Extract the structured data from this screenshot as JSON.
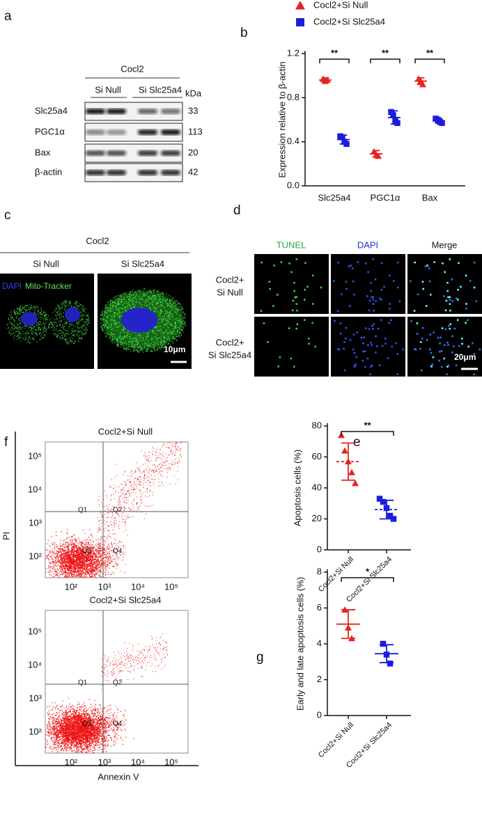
{
  "panel_a": {
    "letter": "a",
    "treatment": "Cocl2",
    "groups": [
      "Si Null",
      "Si Slc25a4"
    ],
    "unit": "kDa",
    "proteins": [
      "Slc25a4",
      "PGC1α",
      "Bax",
      "β-actin"
    ],
    "weights": [
      33,
      113,
      20,
      42
    ]
  },
  "panel_c": {
    "letter": "c",
    "treatment": "Cocl2",
    "groups": [
      "Si Null",
      "Si Slc25a4"
    ],
    "stains": [
      "DAPI",
      "Mito-Tracker"
    ],
    "scale_bar": "10μm"
  },
  "panel_d": {
    "letter": "d",
    "channels": [
      "TUNEL",
      "DAPI",
      "Merge"
    ],
    "rows": [
      [
        "Cocl2+",
        "Si Null"
      ],
      [
        "Cocl2+",
        "Si Slc25a4"
      ]
    ],
    "scale_bar": "20μm"
  },
  "panel_f": {
    "letter": "f",
    "plots": [
      {
        "title": "Cocl2+Si Null"
      },
      {
        "title": "Cocl2+Si Slc25a4"
      }
    ],
    "quadrants": [
      "Q1",
      "Q2",
      "Q3",
      "Q4"
    ],
    "ticks": [
      "10²",
      "10³",
      "10⁴",
      "10⁵"
    ],
    "ylabel": "PI",
    "xlabel": "Annexin V"
  },
  "chart_data": [
    {
      "type": "dot",
      "letter": "b",
      "ylabel": "Expression relative to β-actin",
      "categories": [
        "Slc25a4",
        "PGC1α",
        "Bax"
      ],
      "ylim": [
        0,
        1.2
      ],
      "yticks": [
        {
          "value": 0,
          "label": "0.0"
        },
        {
          "value": 0.4,
          "label": "0.4"
        },
        {
          "value": 0.8,
          "label": "0.8"
        },
        {
          "value": 1.2,
          "label": "1.2"
        }
      ],
      "series": [
        {
          "name": "Cocl2+Si Null",
          "color": "#e8231f",
          "marker": "triangle",
          "values": [
            0.96,
            0.29,
            0.95
          ],
          "errors": [
            0.02,
            0.03,
            0.03
          ],
          "points": [
            [
              0.97,
              0.95,
              0.96
            ],
            [
              0.31,
              0.28,
              0.27
            ],
            [
              0.97,
              0.95,
              0.92
            ]
          ]
        },
        {
          "name": "Cocl2+Si Slc25a4",
          "color": "#1c1cdb",
          "marker": "square",
          "values": [
            0.42,
            0.62,
            0.59
          ],
          "errors": [
            0.04,
            0.06,
            0.02
          ],
          "points": [
            [
              0.45,
              0.44,
              0.4,
              0.38
            ],
            [
              0.67,
              0.64,
              0.59,
              0.57
            ],
            [
              0.61,
              0.6,
              0.58,
              0.57
            ]
          ]
        }
      ],
      "significance": [
        "**",
        "**",
        "**"
      ]
    },
    {
      "type": "dot",
      "letter": "e",
      "ylabel": "Apoptosis cells (%)",
      "categories": [
        "Cocl2+Si Null",
        "Cocl2+Si Slc25a4"
      ],
      "ylim": [
        0,
        80
      ],
      "yticks": [
        0,
        20,
        40,
        60,
        80
      ],
      "colors": [
        "#e8231f",
        "#1c1cdb"
      ],
      "markers": [
        "triangle",
        "square"
      ],
      "values": [
        57,
        26
      ],
      "errors": [
        12,
        6
      ],
      "points": [
        [
          74,
          64,
          57,
          50,
          43
        ],
        [
          33,
          31,
          27,
          22,
          20
        ]
      ],
      "significance": "**"
    },
    {
      "type": "dot",
      "letter": "g",
      "ylabel": "Early and late apoptosis cells (%)",
      "categories": [
        "Cocl2+Si Null",
        "Cocl2+Si Slc25a4"
      ],
      "ylim": [
        0,
        8
      ],
      "yticks": [
        0,
        2,
        4,
        6,
        8
      ],
      "colors": [
        "#e8231f",
        "#1c1cdb"
      ],
      "markers": [
        "triangle",
        "square"
      ],
      "values": [
        5.1,
        3.45
      ],
      "errors": [
        0.8,
        0.5
      ],
      "points": [
        [
          5.9,
          4.9,
          4.3
        ],
        [
          4.0,
          3.4,
          2.9
        ]
      ],
      "significance": "*"
    }
  ]
}
